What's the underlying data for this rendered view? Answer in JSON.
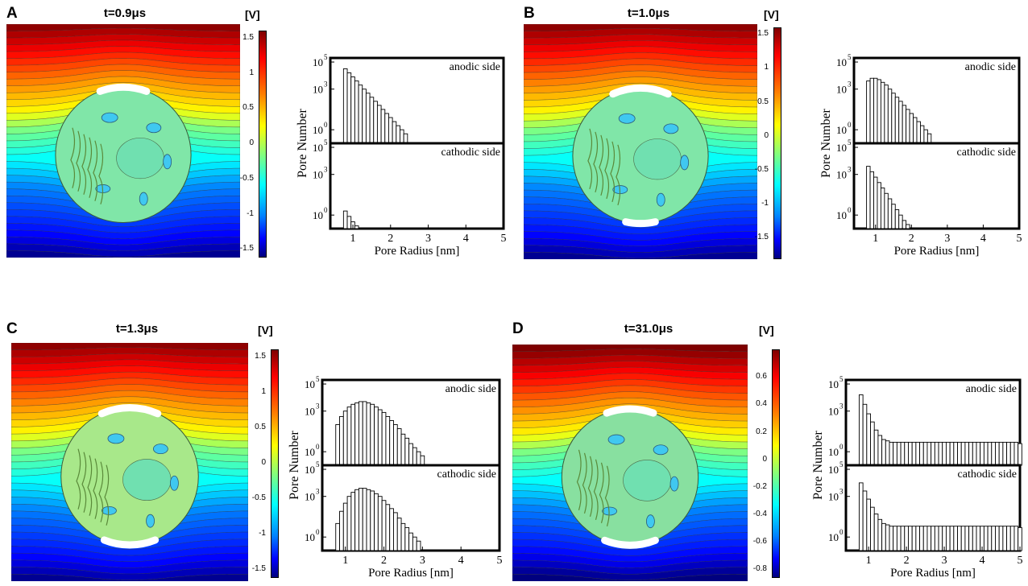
{
  "panels": [
    {
      "label": "A",
      "time_html": "t=0.9",
      "time_unit": "μs",
      "unit": "[V]",
      "colorbar_ticks": [
        "1.5",
        "1",
        "0.5",
        "0",
        "-0.5",
        "-1",
        "-1.5"
      ],
      "colorbar_range": [
        -1.6,
        1.6
      ]
    },
    {
      "label": "B",
      "time_html": "t=1.0",
      "time_unit": "μs",
      "unit": "[V]",
      "colorbar_ticks": [
        "1.5",
        "1",
        "0.5",
        "0",
        "-0.5",
        "-1",
        "-1.5"
      ],
      "colorbar_range": [
        -1.8,
        1.6
      ]
    },
    {
      "label": "C",
      "time_html": "t=1.3",
      "time_unit": "μs",
      "unit": "[V]",
      "colorbar_ticks": [
        "1.5",
        "1",
        "0.5",
        "0",
        "-0.5",
        "-1",
        "-1.5"
      ],
      "colorbar_range": [
        -1.6,
        1.6
      ]
    },
    {
      "label": "D",
      "time_html": "t=31.0",
      "time_unit": "μs",
      "unit": "[V]",
      "colorbar_ticks": [
        "0.6",
        "0.4",
        "0.2",
        "0",
        "-0.2",
        "-0.4",
        "-0.6",
        "-0.8"
      ],
      "colorbar_range": [
        -0.85,
        0.8
      ]
    }
  ],
  "histogram_labels": {
    "ylabel": "Pore Number",
    "xlabel": "Pore Radius [nm]",
    "top_label": "anodic side",
    "bottom_label": "cathodic side",
    "xticks": [
      "1",
      "2",
      "3",
      "4",
      "5"
    ],
    "yticks": [
      "10",
      "10",
      "10"
    ],
    "yexp": [
      "0",
      "3",
      "5"
    ]
  },
  "chart_data": [
    {
      "type": "bar",
      "panel": "A",
      "x_bin_start_nm": 0.8,
      "bin_width_nm": 0.1,
      "xlim": [
        0.4,
        5
      ],
      "yscale": "log",
      "ylim_log10": [
        -1,
        5.3
      ],
      "series": [
        {
          "name": "anodic side",
          "log10_values": [
            4.5,
            4.2,
            3.9,
            3.6,
            3.3,
            3.0,
            2.7,
            2.4,
            2.1,
            1.8,
            1.5,
            1.2,
            0.9,
            0.6,
            0.3,
            0.0,
            -0.3
          ]
        },
        {
          "name": "cathodic side",
          "log10_values": [
            0.3,
            -0.1,
            -0.5,
            -0.8
          ]
        }
      ]
    },
    {
      "type": "bar",
      "panel": "B",
      "x_bin_start_nm": 0.8,
      "bin_width_nm": 0.1,
      "xlim": [
        0.4,
        5
      ],
      "yscale": "log",
      "ylim_log10": [
        -1,
        5.3
      ],
      "series": [
        {
          "name": "anodic side",
          "log10_values": [
            3.6,
            3.8,
            3.8,
            3.7,
            3.5,
            3.3,
            3.0,
            2.7,
            2.4,
            2.1,
            1.8,
            1.5,
            1.2,
            0.9,
            0.6,
            0.3,
            0.0,
            -0.3
          ]
        },
        {
          "name": "cathodic side",
          "log10_values": [
            3.6,
            3.2,
            2.8,
            2.4,
            2.0,
            1.6,
            1.2,
            0.8,
            0.4,
            0.0,
            -0.4,
            -0.7
          ]
        }
      ]
    },
    {
      "type": "bar",
      "panel": "C",
      "x_bin_start_nm": 0.8,
      "bin_width_nm": 0.1,
      "xlim": [
        0.4,
        5
      ],
      "yscale": "log",
      "ylim_log10": [
        -1,
        5.3
      ],
      "series": [
        {
          "name": "anodic side",
          "log10_values": [
            2.0,
            2.6,
            3.0,
            3.3,
            3.5,
            3.6,
            3.7,
            3.7,
            3.6,
            3.5,
            3.3,
            3.1,
            2.9,
            2.6,
            2.3,
            2.0,
            1.7,
            1.3,
            1.0,
            0.6,
            0.3,
            0.0,
            -0.3
          ]
        },
        {
          "name": "cathodic side",
          "log10_values": [
            1.0,
            1.9,
            2.5,
            3.0,
            3.3,
            3.5,
            3.6,
            3.6,
            3.5,
            3.4,
            3.2,
            3.0,
            2.7,
            2.4,
            2.1,
            1.8,
            1.4,
            1.0,
            0.7,
            0.3,
            0.0,
            -0.3
          ]
        }
      ]
    },
    {
      "type": "bar",
      "panel": "D",
      "x_bin_start_nm": 0.8,
      "bin_width_nm": 0.1,
      "xlim": [
        0.4,
        5
      ],
      "yscale": "log",
      "ylim_log10": [
        -1,
        5.3
      ],
      "series": [
        {
          "name": "anodic side",
          "log10_values": [
            4.2,
            3.5,
            2.8,
            2.2,
            1.6,
            1.2,
            0.9,
            0.8,
            0.7,
            0.7,
            0.7,
            0.7,
            0.7,
            0.7,
            0.7,
            0.7,
            0.7,
            0.7,
            0.7,
            0.7,
            0.7,
            0.7,
            0.7,
            0.7,
            0.7,
            0.7,
            0.7,
            0.7,
            0.7,
            0.7,
            0.7,
            0.7,
            0.7,
            0.7,
            0.7,
            0.7,
            0.7,
            0.7,
            0.7,
            0.7,
            0.7,
            0.7,
            0.6
          ]
        },
        {
          "name": "cathodic side",
          "log10_values": [
            4.0,
            3.4,
            2.8,
            2.2,
            1.7,
            1.3,
            1.0,
            0.9,
            0.8,
            0.8,
            0.8,
            0.8,
            0.8,
            0.8,
            0.8,
            0.8,
            0.8,
            0.8,
            0.8,
            0.8,
            0.8,
            0.8,
            0.8,
            0.8,
            0.8,
            0.8,
            0.8,
            0.8,
            0.8,
            0.8,
            0.8,
            0.8,
            0.8,
            0.8,
            0.8,
            0.8,
            0.8,
            0.8,
            0.8,
            0.8,
            0.8,
            0.8,
            0.7
          ]
        }
      ]
    }
  ]
}
